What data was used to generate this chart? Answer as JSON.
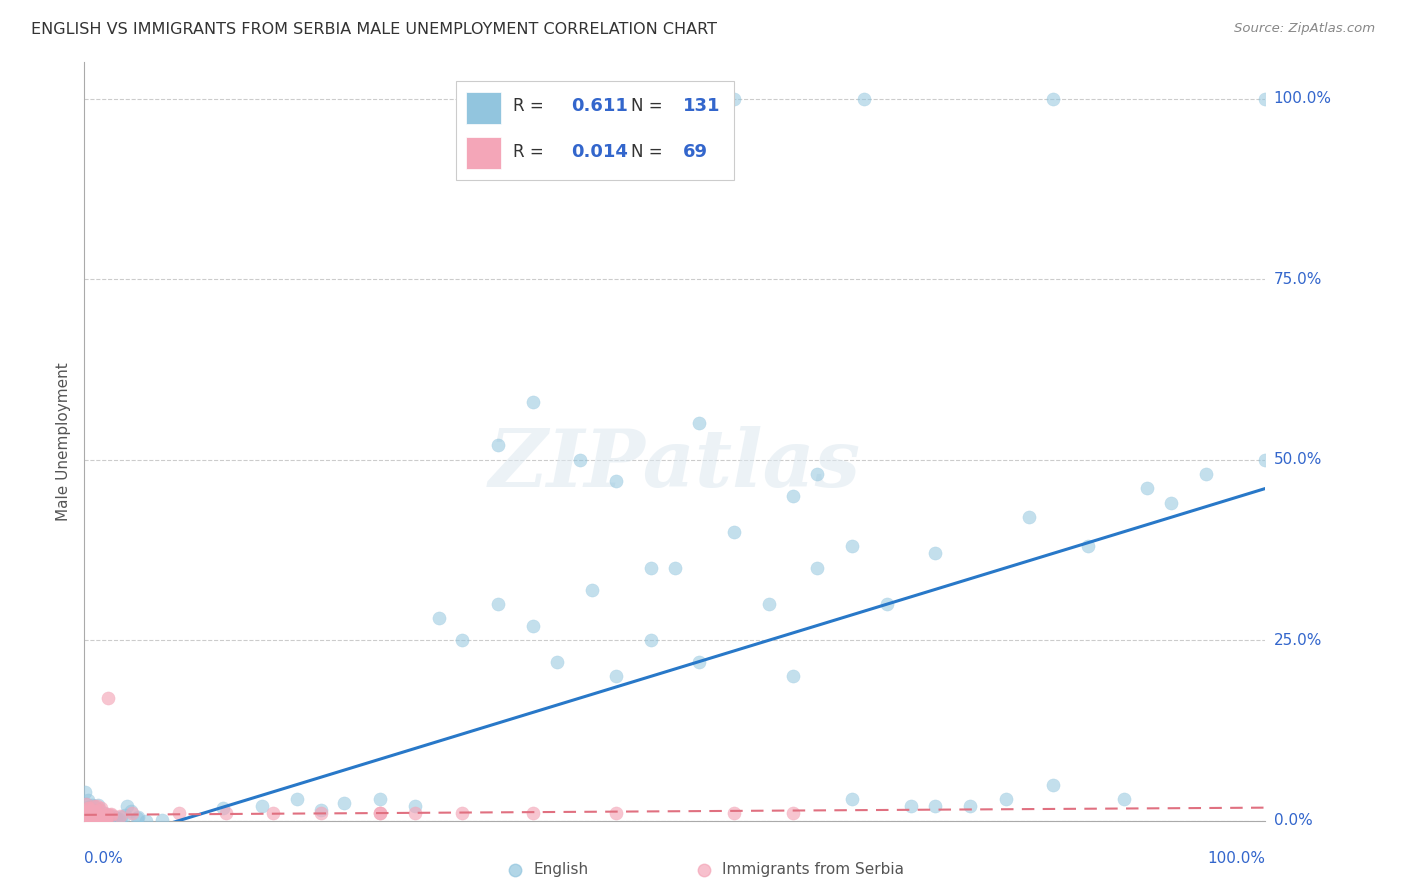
{
  "title": "ENGLISH VS IMMIGRANTS FROM SERBIA MALE UNEMPLOYMENT CORRELATION CHART",
  "source": "Source: ZipAtlas.com",
  "ylabel": "Male Unemployment",
  "ytick_labels": [
    "0.0%",
    "25.0%",
    "50.0%",
    "75.0%",
    "100.0%"
  ],
  "ytick_values": [
    0.0,
    0.25,
    0.5,
    0.75,
    1.0
  ],
  "xlim": [
    0.0,
    1.0
  ],
  "ylim": [
    0.0,
    1.05
  ],
  "english_R": "0.611",
  "english_N": "131",
  "serbia_R": "0.014",
  "serbia_N": "69",
  "english_color": "#92c5de",
  "serbia_color": "#f4a6b8",
  "trend_english_color": "#2878c8",
  "trend_serbia_color": "#e07080",
  "background_color": "#ffffff",
  "grid_color": "#cccccc",
  "watermark": "ZIPatlas",
  "legend_label_english": "English",
  "legend_label_serbia": "Immigrants from Serbia"
}
